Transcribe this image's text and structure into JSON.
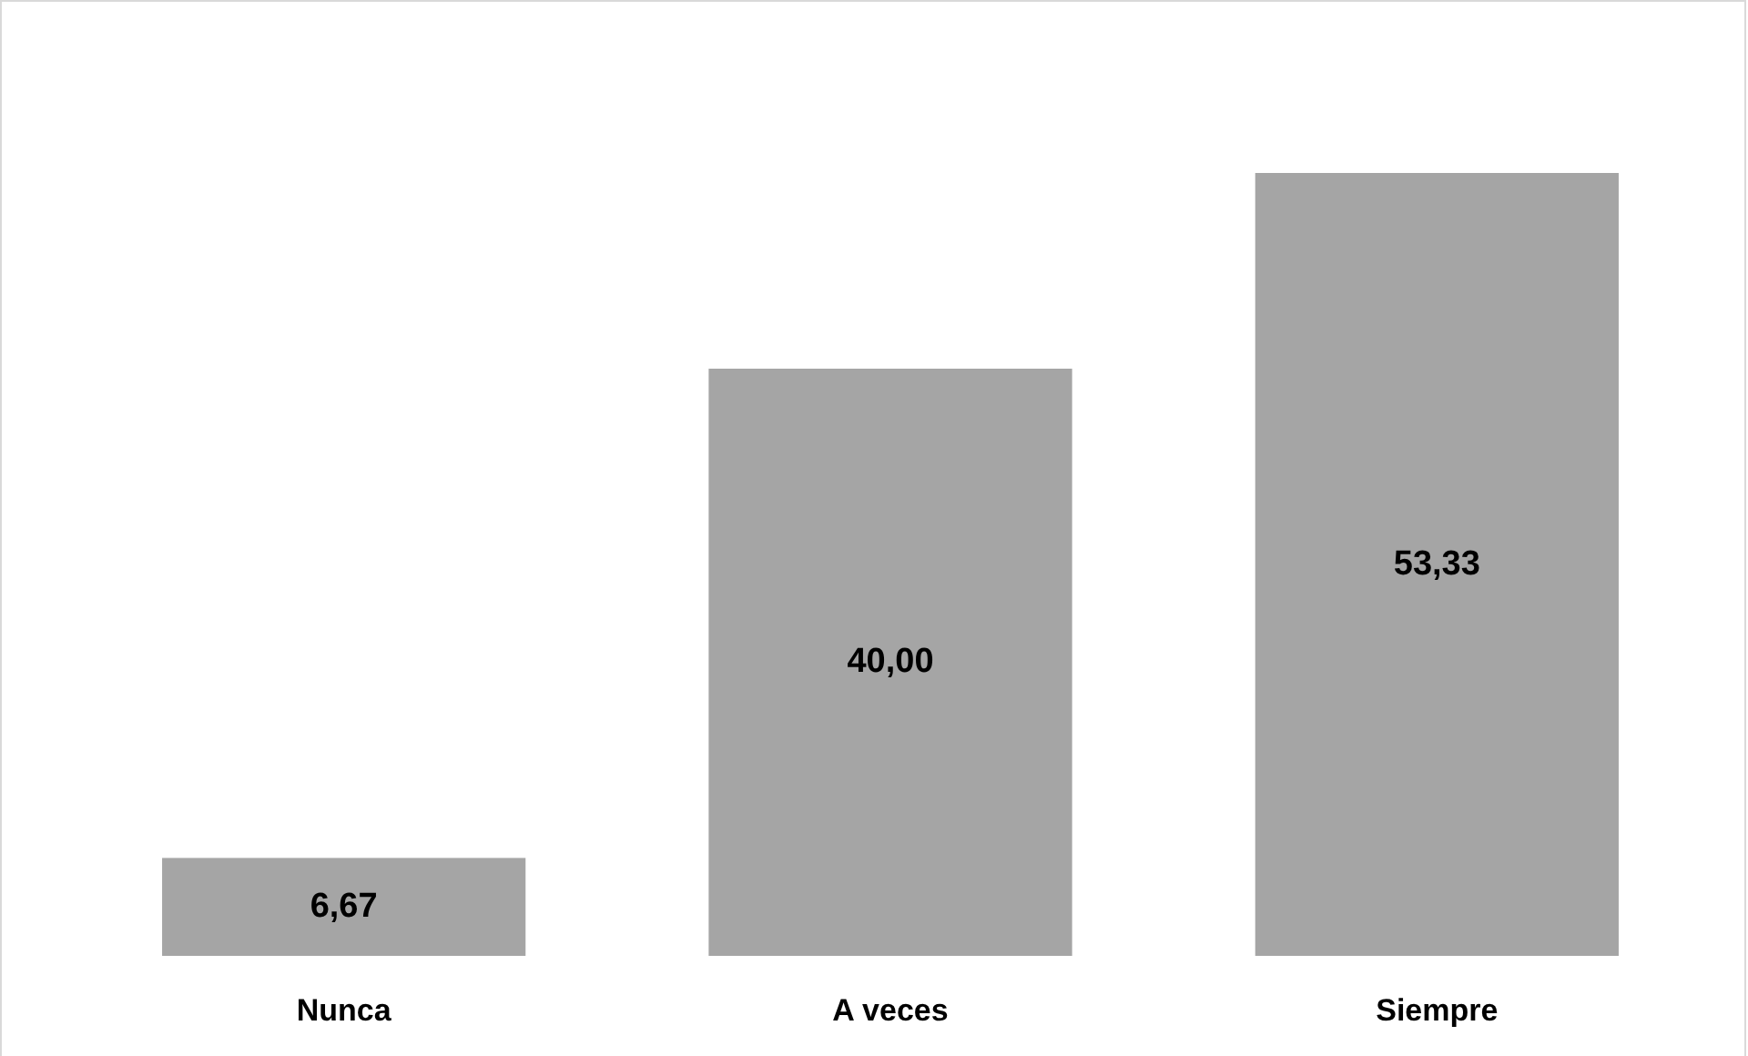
{
  "chart_data": {
    "type": "bar",
    "categories": [
      "Nunca",
      "A veces",
      "Siempre"
    ],
    "values": [
      6.67,
      40,
      53.33
    ],
    "color": "#a5a5a5",
    "value_labels": [
      "6,67",
      "40,00",
      "53,33"
    ]
  }
}
